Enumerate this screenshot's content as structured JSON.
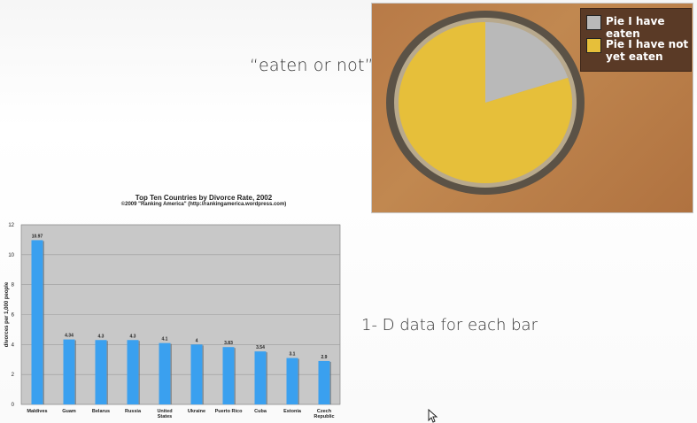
{
  "slide": {
    "caption_top": "“eaten or not”",
    "caption_bottom": "1- D data for each bar"
  },
  "photo": {
    "legend": [
      {
        "label": "Pie I have eaten",
        "color": "#b9b9b9"
      },
      {
        "label": "Pie I have not\nyet eaten",
        "color": "#e6bf3a"
      }
    ],
    "eaten_fraction": 0.2
  },
  "chart_data": {
    "type": "bar",
    "title": "Top Ten Countries by Divorce Rate, 2002",
    "subtitle": "©2009 \"Ranking America\" (http://rankingamerica.wordpress.com)",
    "ylabel": "divorces per 1,000 people",
    "xlabel": "",
    "ylim": [
      0,
      12
    ],
    "yticks": [
      0,
      2,
      4,
      6,
      8,
      10,
      12
    ],
    "grid": true,
    "categories": [
      "Maldives",
      "Guam",
      "Belarus",
      "Russia",
      "United\nStates",
      "Ukraine",
      "Puerto Rico",
      "Cuba",
      "Estonia",
      "Czech\nRepublic"
    ],
    "values": [
      10.97,
      4.34,
      4.3,
      4.3,
      4.1,
      4,
      3.83,
      3.54,
      3.1,
      2.9
    ],
    "value_labels": [
      "10.97",
      "4.34",
      "4.3",
      "4.3",
      "4.1",
      "4",
      "3.83",
      "3.54",
      "3.1",
      "2.9"
    ],
    "colors": {
      "bar": "#3aa0ef",
      "plot_bg": "#c8c8c8",
      "grid": "#9a9a9a"
    }
  }
}
